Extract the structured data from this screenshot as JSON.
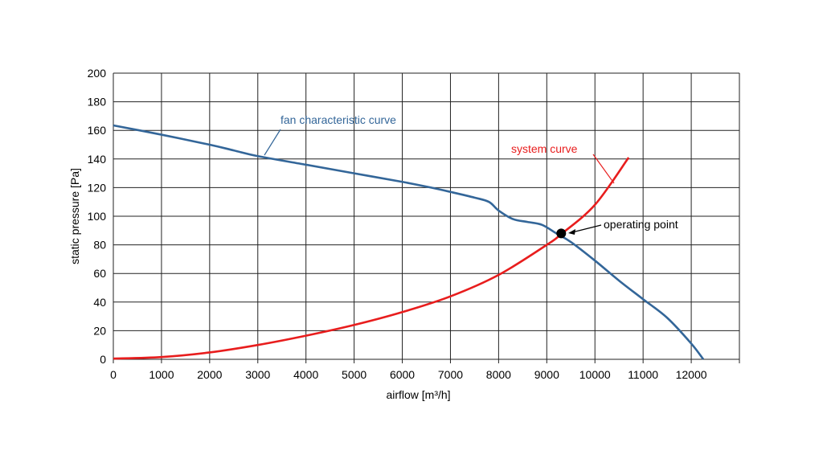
{
  "chart_data": {
    "type": "line",
    "xlabel": "airflow [m³/h]",
    "ylabel": "static pressure [Pa]",
    "xlim": [
      0,
      13000
    ],
    "ylim": [
      0,
      200
    ],
    "x_ticks": [
      0,
      1000,
      2000,
      3000,
      4000,
      5000,
      6000,
      7000,
      8000,
      9000,
      10000,
      11000,
      12000
    ],
    "y_ticks": [
      0,
      20,
      40,
      60,
      80,
      100,
      120,
      140,
      160,
      180,
      200
    ],
    "grid": true,
    "series": [
      {
        "name": "fan characteristic curve",
        "color": "#336699",
        "x": [
          0,
          1000,
          2000,
          2500,
          3000,
          4000,
          5000,
          6000,
          6600,
          7000,
          7500,
          7800,
          8000,
          8300,
          8600,
          8900,
          9200,
          9500,
          10000,
          10500,
          11000,
          11500,
          12000,
          12250
        ],
        "y": [
          163.5,
          157,
          150,
          146,
          142,
          136,
          130,
          124,
          120,
          117,
          113,
          110,
          104,
          98,
          96,
          94,
          88,
          82,
          69,
          55,
          42,
          29,
          11,
          0
        ]
      },
      {
        "name": "system curve",
        "color": "#e81d1d",
        "x": [
          0,
          1000,
          2000,
          3000,
          4000,
          5000,
          6000,
          7000,
          8000,
          9000,
          9300,
          10000,
          10700
        ],
        "y": [
          0.5,
          1.6,
          4.8,
          10,
          16.5,
          24,
          33,
          44,
          59,
          80,
          87.5,
          108,
          141
        ]
      }
    ],
    "annotations": [
      {
        "text": "fan characteristic curve",
        "color": "#336699"
      },
      {
        "text": "system curve",
        "color": "#e81d1d"
      },
      {
        "text": "operating point",
        "color": "#000000"
      }
    ],
    "operating_point": {
      "x": 9300,
      "y": 88
    }
  }
}
